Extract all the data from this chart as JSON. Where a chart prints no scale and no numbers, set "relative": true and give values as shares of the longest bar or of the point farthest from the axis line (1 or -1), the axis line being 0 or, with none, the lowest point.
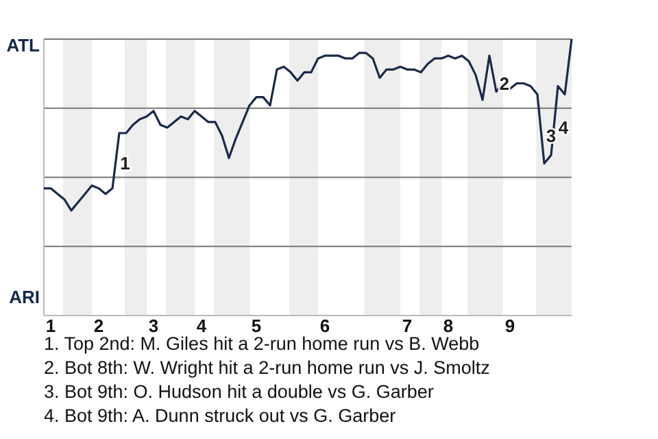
{
  "chart_data": {
    "type": "line",
    "relative": true,
    "categories": [
      null,
      "1",
      null,
      null,
      null,
      null,
      null,
      null,
      "2",
      null,
      null,
      null,
      null,
      null,
      null,
      null,
      "3",
      null,
      null,
      null,
      null,
      null,
      null,
      "4",
      null,
      null,
      null,
      null,
      null,
      null,
      null,
      "5",
      null,
      null,
      null,
      null,
      null,
      null,
      null,
      null,
      null,
      "6",
      null,
      null,
      null,
      null,
      null,
      null,
      null,
      null,
      null,
      null,
      null,
      "7",
      null,
      null,
      null,
      null,
      null,
      "8",
      null,
      null,
      null,
      null,
      null,
      null,
      null,
      null,
      "9",
      null,
      null,
      null,
      null,
      null,
      null,
      null,
      null,
      null
    ],
    "series": [
      {
        "color": "#1a2a4a",
        "values": [
          0.46,
          0.46,
          0.44,
          0.42,
          0.38,
          0.41,
          0.44,
          0.47,
          0.46,
          0.44,
          0.46,
          0.66,
          0.66,
          0.69,
          0.71,
          0.72,
          0.74,
          0.69,
          0.68,
          0.7,
          0.72,
          0.71,
          0.74,
          0.72,
          0.7,
          0.7,
          0.65,
          0.57,
          0.64,
          0.7,
          0.76,
          0.79,
          0.79,
          0.76,
          0.89,
          0.9,
          0.88,
          0.85,
          0.88,
          0.88,
          0.93,
          0.94,
          0.94,
          0.94,
          0.93,
          0.93,
          0.95,
          0.95,
          0.93,
          0.86,
          0.89,
          0.89,
          0.9,
          0.89,
          0.89,
          0.88,
          0.91,
          0.93,
          0.93,
          0.94,
          0.93,
          0.94,
          0.92,
          0.87,
          0.78,
          0.94,
          0.81,
          0.84,
          0.82,
          0.84,
          0.84,
          0.83,
          0.8,
          0.55,
          0.58,
          0.83,
          0.8,
          1.0
        ]
      }
    ],
    "marker": "none",
    "line_style": "solid",
    "ref_lines": [
      {
        "axis": "y",
        "value": 0.25,
        "color": "#777777"
      },
      {
        "axis": "y",
        "value": 0.5,
        "color": "#777777"
      },
      {
        "axis": "y",
        "value": 0.75,
        "color": "#777777"
      }
    ],
    "annotations": [
      "ATL",
      "ARI",
      "1",
      "2",
      "3",
      "4",
      "1. Top 2nd: M. Giles hit a 2-run home run vs B. Webb",
      "2. Bot 8th: W. Wright hit a 2-run home run vs J. Smoltz",
      "3. Bot 9th: O. Hudson hit a double vs G. Garber",
      "4. Bot 9th: A. Dunn struck out vs G. Garber"
    ]
  }
}
